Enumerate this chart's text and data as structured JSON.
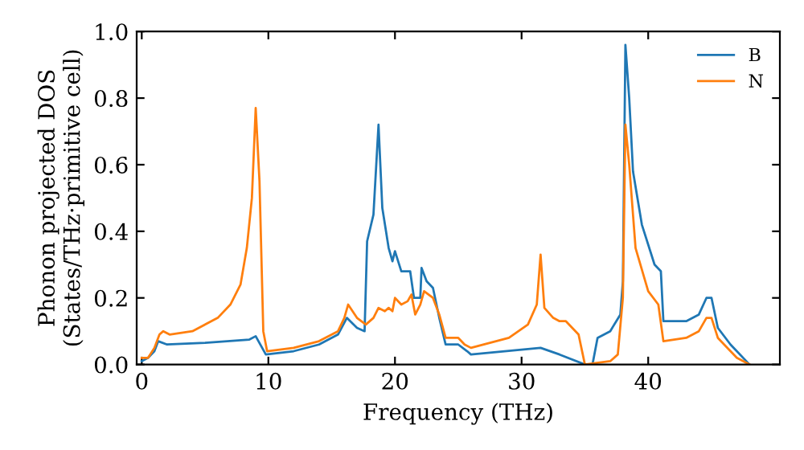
{
  "chart_data": {
    "type": "line",
    "xlabel": "Frequency (THz)",
    "ylabel": "Phonon projected DOS\n(States/THz·primitive cell)",
    "xlim": [
      -0.4,
      50.4
    ],
    "ylim": [
      0,
      1.0
    ],
    "xticks": [
      0,
      10,
      20,
      30,
      40
    ],
    "yticks": [
      {
        "value": 0,
        "label": "0.0"
      },
      {
        "value": 0.2,
        "label": "0.2"
      },
      {
        "value": 0.4,
        "label": "0.4"
      },
      {
        "value": 0.6,
        "label": "0.6"
      },
      {
        "value": 0.8,
        "label": "0.8"
      },
      {
        "value": 1.0,
        "label": "1.0"
      }
    ],
    "grid": false,
    "legend": "top right",
    "marker": "none",
    "line_style": "solid",
    "series": [
      {
        "name": "B",
        "color": "#1f77b4",
        "x": [
          0,
          0.5,
          1,
          1.3,
          2,
          5,
          8.5,
          9,
          9.8,
          12,
          14,
          15.5,
          16.2,
          17,
          17.6,
          17.8,
          18.3,
          18.7,
          19,
          19.5,
          19.8,
          20,
          20.5,
          21.2,
          21.5,
          22,
          22.1,
          22.5,
          23,
          23.5,
          24,
          25,
          25.7,
          26,
          31.5,
          33,
          35,
          35.6,
          36,
          37,
          37.8,
          38,
          38.2,
          38.5,
          38.8,
          39.5,
          40.5,
          41,
          41.2,
          43,
          44,
          44.6,
          45,
          45.5,
          46.5,
          48
        ],
        "values": [
          0.01,
          0.02,
          0.04,
          0.07,
          0.06,
          0.065,
          0.075,
          0.085,
          0.03,
          0.04,
          0.06,
          0.09,
          0.14,
          0.11,
          0.1,
          0.37,
          0.45,
          0.72,
          0.47,
          0.35,
          0.31,
          0.34,
          0.28,
          0.28,
          0.2,
          0.2,
          0.29,
          0.25,
          0.23,
          0.14,
          0.06,
          0.06,
          0.04,
          0.03,
          0.05,
          0.03,
          0.0,
          0.0,
          0.08,
          0.1,
          0.15,
          0.25,
          0.96,
          0.8,
          0.58,
          0.42,
          0.3,
          0.28,
          0.13,
          0.13,
          0.15,
          0.2,
          0.2,
          0.11,
          0.06,
          0.0
        ]
      },
      {
        "name": "N",
        "color": "#ff7f0e",
        "x": [
          0,
          0.5,
          1,
          1.4,
          1.7,
          2.2,
          4,
          6,
          7,
          7.8,
          8.3,
          8.7,
          9,
          9.3,
          9.6,
          9.9,
          12,
          14,
          15.5,
          16,
          16.3,
          17,
          17.7,
          18.3,
          18.7,
          19.2,
          19.5,
          19.8,
          20,
          20.5,
          21,
          21.3,
          21.6,
          22,
          22.3,
          23,
          23.5,
          24,
          25,
          25.5,
          26,
          29,
          30.5,
          31.2,
          31.5,
          31.8,
          32.5,
          33,
          33.5,
          34,
          34.5,
          35,
          37,
          37.6,
          38,
          38.2,
          38.5,
          39,
          40,
          40.8,
          41.2,
          43,
          44,
          44.6,
          45,
          45.5,
          47,
          48
        ],
        "values": [
          0.02,
          0.02,
          0.05,
          0.09,
          0.1,
          0.09,
          0.1,
          0.14,
          0.18,
          0.24,
          0.35,
          0.5,
          0.77,
          0.55,
          0.1,
          0.04,
          0.05,
          0.07,
          0.1,
          0.14,
          0.18,
          0.14,
          0.12,
          0.14,
          0.17,
          0.16,
          0.17,
          0.16,
          0.2,
          0.18,
          0.19,
          0.21,
          0.15,
          0.18,
          0.22,
          0.2,
          0.15,
          0.08,
          0.08,
          0.06,
          0.05,
          0.08,
          0.12,
          0.18,
          0.33,
          0.17,
          0.14,
          0.13,
          0.13,
          0.11,
          0.09,
          0.0,
          0.01,
          0.03,
          0.2,
          0.72,
          0.6,
          0.35,
          0.22,
          0.18,
          0.07,
          0.08,
          0.1,
          0.14,
          0.14,
          0.08,
          0.02,
          0.0
        ]
      }
    ]
  }
}
